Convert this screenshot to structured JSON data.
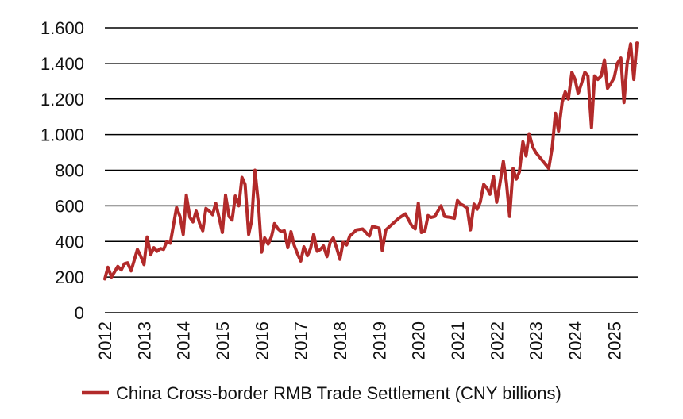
{
  "chart_data": {
    "type": "line",
    "title": "",
    "xlabel": "",
    "ylabel": "",
    "ylim": [
      0,
      1600
    ],
    "xlim": [
      2012,
      2025.33
    ],
    "yticks": [
      0,
      200,
      400,
      600,
      800,
      1000,
      1200,
      1400,
      1600
    ],
    "ytick_labels": [
      "0",
      "200",
      "400",
      "600",
      "800",
      "1.000",
      "1.200",
      "1.400",
      "1.600"
    ],
    "xticks": [
      2012,
      2013,
      2014,
      2015,
      2016,
      2017,
      2018,
      2019,
      2020,
      2021,
      2022,
      2023,
      2024,
      2025
    ],
    "xtick_labels": [
      "2012",
      "2013",
      "2014",
      "2015",
      "2016",
      "2017",
      "2018",
      "2019",
      "2020",
      "2021",
      "2022",
      "2023",
      "2024",
      "2025"
    ],
    "grid": true,
    "legend_position": "bottom-center",
    "series": [
      {
        "name": "China Cross-border RMB Trade Settlement (CNY billions)",
        "color": "#b22a2a",
        "points": [
          [
            2012.0,
            190
          ],
          [
            2012.08,
            255
          ],
          [
            2012.17,
            200
          ],
          [
            2012.33,
            260
          ],
          [
            2012.42,
            240
          ],
          [
            2012.5,
            275
          ],
          [
            2012.58,
            280
          ],
          [
            2012.67,
            235
          ],
          [
            2012.83,
            355
          ],
          [
            2012.92,
            315
          ],
          [
            2013.0,
            270
          ],
          [
            2013.08,
            425
          ],
          [
            2013.17,
            325
          ],
          [
            2013.25,
            365
          ],
          [
            2013.33,
            345
          ],
          [
            2013.42,
            360
          ],
          [
            2013.5,
            355
          ],
          [
            2013.58,
            400
          ],
          [
            2013.67,
            390
          ],
          [
            2013.83,
            590
          ],
          [
            2013.92,
            540
          ],
          [
            2014.0,
            440
          ],
          [
            2014.08,
            660
          ],
          [
            2014.17,
            535
          ],
          [
            2014.25,
            510
          ],
          [
            2014.33,
            570
          ],
          [
            2014.42,
            500
          ],
          [
            2014.5,
            460
          ],
          [
            2014.58,
            585
          ],
          [
            2014.67,
            570
          ],
          [
            2014.75,
            550
          ],
          [
            2014.83,
            615
          ],
          [
            2014.92,
            530
          ],
          [
            2015.0,
            450
          ],
          [
            2015.08,
            660
          ],
          [
            2015.17,
            540
          ],
          [
            2015.25,
            520
          ],
          [
            2015.33,
            655
          ],
          [
            2015.42,
            600
          ],
          [
            2015.5,
            760
          ],
          [
            2015.58,
            720
          ],
          [
            2015.67,
            440
          ],
          [
            2015.75,
            520
          ],
          [
            2015.83,
            800
          ],
          [
            2015.92,
            610
          ],
          [
            2016.0,
            340
          ],
          [
            2016.08,
            420
          ],
          [
            2016.17,
            385
          ],
          [
            2016.25,
            425
          ],
          [
            2016.33,
            500
          ],
          [
            2016.42,
            470
          ],
          [
            2016.5,
            455
          ],
          [
            2016.58,
            460
          ],
          [
            2016.67,
            365
          ],
          [
            2016.75,
            455
          ],
          [
            2016.83,
            380
          ],
          [
            2016.92,
            330
          ],
          [
            2017.0,
            290
          ],
          [
            2017.08,
            370
          ],
          [
            2017.17,
            320
          ],
          [
            2017.25,
            360
          ],
          [
            2017.33,
            440
          ],
          [
            2017.42,
            345
          ],
          [
            2017.5,
            355
          ],
          [
            2017.58,
            375
          ],
          [
            2017.67,
            315
          ],
          [
            2017.75,
            395
          ],
          [
            2017.83,
            420
          ],
          [
            2017.92,
            360
          ],
          [
            2018.0,
            300
          ],
          [
            2018.08,
            395
          ],
          [
            2018.17,
            380
          ],
          [
            2018.25,
            430
          ],
          [
            2018.42,
            465
          ],
          [
            2018.58,
            470
          ],
          [
            2018.75,
            430
          ],
          [
            2018.83,
            485
          ],
          [
            2019.0,
            475
          ],
          [
            2019.08,
            350
          ],
          [
            2019.17,
            465
          ],
          [
            2019.5,
            530
          ],
          [
            2019.67,
            555
          ],
          [
            2019.83,
            490
          ],
          [
            2019.92,
            470
          ],
          [
            2020.0,
            615
          ],
          [
            2020.08,
            450
          ],
          [
            2020.17,
            460
          ],
          [
            2020.25,
            545
          ],
          [
            2020.33,
            535
          ],
          [
            2020.42,
            540
          ],
          [
            2020.58,
            600
          ],
          [
            2020.67,
            540
          ],
          [
            2020.83,
            535
          ],
          [
            2020.92,
            530
          ],
          [
            2021.0,
            630
          ],
          [
            2021.08,
            610
          ],
          [
            2021.17,
            600
          ],
          [
            2021.25,
            585
          ],
          [
            2021.33,
            465
          ],
          [
            2021.42,
            610
          ],
          [
            2021.5,
            580
          ],
          [
            2021.58,
            620
          ],
          [
            2021.67,
            720
          ],
          [
            2021.75,
            700
          ],
          [
            2021.83,
            665
          ],
          [
            2021.92,
            765
          ],
          [
            2022.0,
            620
          ],
          [
            2022.08,
            720
          ],
          [
            2022.17,
            850
          ],
          [
            2022.25,
            730
          ],
          [
            2022.33,
            540
          ],
          [
            2022.42,
            810
          ],
          [
            2022.5,
            750
          ],
          [
            2022.58,
            790
          ],
          [
            2022.67,
            960
          ],
          [
            2022.75,
            880
          ],
          [
            2022.83,
            1005
          ],
          [
            2022.92,
            930
          ],
          [
            2023.0,
            900
          ],
          [
            2023.33,
            810
          ],
          [
            2023.42,
            930
          ],
          [
            2023.5,
            1120
          ],
          [
            2023.58,
            1020
          ],
          [
            2023.67,
            1180
          ],
          [
            2023.75,
            1240
          ],
          [
            2023.83,
            1200
          ],
          [
            2023.92,
            1350
          ],
          [
            2024.0,
            1310
          ],
          [
            2024.08,
            1230
          ],
          [
            2024.17,
            1290
          ],
          [
            2024.25,
            1350
          ],
          [
            2024.33,
            1330
          ],
          [
            2024.42,
            1040
          ],
          [
            2024.5,
            1330
          ],
          [
            2024.58,
            1310
          ],
          [
            2024.67,
            1330
          ],
          [
            2024.75,
            1420
          ],
          [
            2024.83,
            1260
          ],
          [
            2024.92,
            1290
          ],
          [
            2025.0,
            1320
          ],
          [
            2025.08,
            1400
          ],
          [
            2025.17,
            1430
          ],
          [
            2025.25,
            1180
          ],
          [
            2025.33,
            1400
          ],
          [
            2025.42,
            1510
          ],
          [
            2025.5,
            1310
          ],
          [
            2025.58,
            1515
          ]
        ]
      }
    ]
  }
}
